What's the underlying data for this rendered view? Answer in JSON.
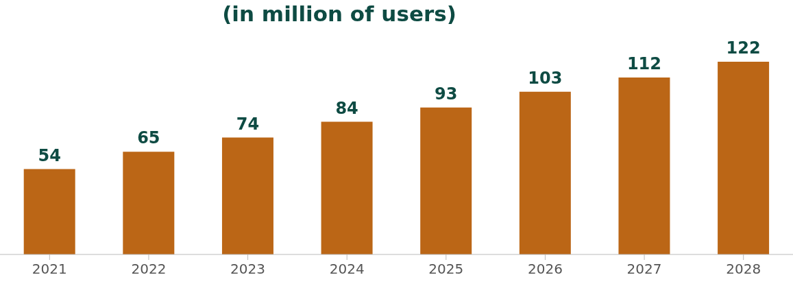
{
  "chart_data": {
    "type": "bar",
    "title": "(in million of users)",
    "categories": [
      "2021",
      "2022",
      "2023",
      "2024",
      "2025",
      "2026",
      "2027",
      "2028"
    ],
    "values": [
      54,
      65,
      74,
      84,
      93,
      103,
      112,
      122
    ],
    "color": "#bb6616",
    "data_labels": true,
    "grid": false
  }
}
